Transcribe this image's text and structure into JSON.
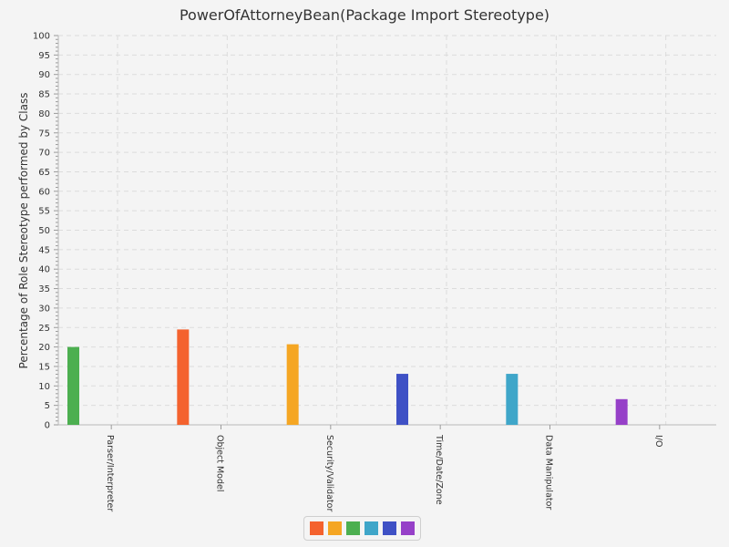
{
  "chart_data": {
    "type": "bar",
    "title": "PowerOfAttorneyBean(Package Import Stereotype)",
    "xlabel": "",
    "ylabel": "Percentage of Role Stereotype performed by Class",
    "ylim": [
      0,
      100
    ],
    "y_ticks": [
      0,
      5,
      10,
      15,
      20,
      25,
      30,
      35,
      40,
      45,
      50,
      55,
      60,
      65,
      70,
      75,
      80,
      85,
      90,
      95,
      100
    ],
    "categories": [
      "Parser/Interpreter",
      "Object Model",
      "Security/Validator",
      "Time/Date/Zone",
      "Data Manipulator",
      "I/O"
    ],
    "values": [
      20,
      24.5,
      20.7,
      13.1,
      13.1,
      6.6
    ],
    "bar_colors": [
      "#4caf50",
      "#f4622e",
      "#f5a623",
      "#3f51c5",
      "#3fa6c9",
      "#9640c8"
    ],
    "grid": true,
    "legend_position": "bottom",
    "legend_swatches": [
      "#f4622e",
      "#f5a623",
      "#4caf50",
      "#3fa6c9",
      "#3f51c5",
      "#9640c8"
    ]
  }
}
